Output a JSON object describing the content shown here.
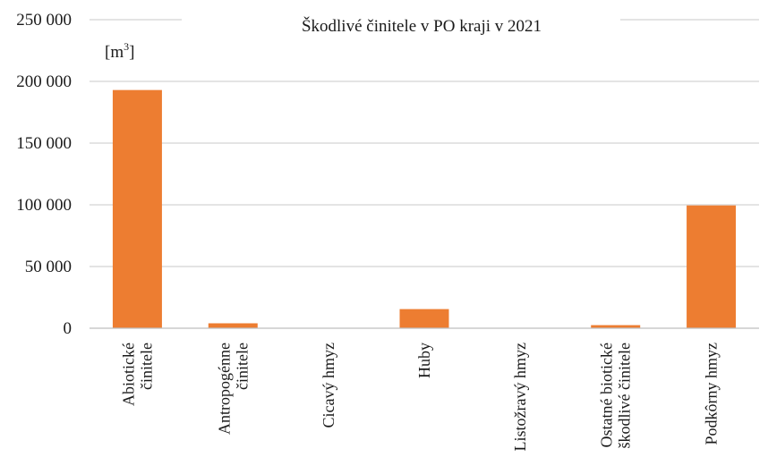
{
  "chart_data": {
    "type": "bar",
    "title": "Škodlivé činitele v PO kraji v 2021",
    "unit_label": "[m",
    "unit_exponent": "3",
    "unit_close": "]",
    "categories": [
      [
        "Abiotické",
        "činitele"
      ],
      [
        "Antropogénne",
        "činitele"
      ],
      [
        "Cicavý hmyz"
      ],
      [
        "Huby"
      ],
      [
        "Listožravý hmyz"
      ],
      [
        "Ostatné biotické",
        "škodlivé činitele"
      ],
      [
        "Podkôrny hmyz"
      ]
    ],
    "values": [
      193000,
      4000,
      0,
      15500,
      0,
      2500,
      99500
    ],
    "ylim": [
      0,
      250000
    ],
    "yticks": [
      0,
      50000,
      100000,
      150000,
      200000,
      250000
    ],
    "ytick_labels": [
      "0",
      "50 000",
      "100 000",
      "150 000",
      "200 000",
      "250 000"
    ],
    "grid": true,
    "bar_color": "#ed7d31"
  }
}
